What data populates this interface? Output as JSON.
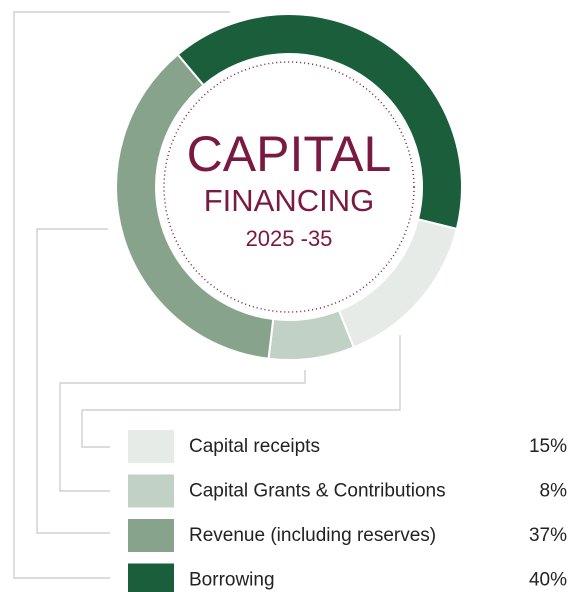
{
  "chart_data": {
    "type": "pie",
    "title_lines": [
      "CAPITAL",
      "FINANCING",
      "2025 -35"
    ],
    "categories": [
      "Capital receipts",
      "Capital Grants & Contributions",
      "Revenue (including reserves)",
      "Borrowing"
    ],
    "values": [
      15,
      8,
      37,
      40
    ],
    "value_labels": [
      "15%",
      "8%",
      "37%",
      "40%"
    ],
    "colors": [
      "#e6ebe7",
      "#c2d1c5",
      "#88a38b",
      "#1b5e3c"
    ],
    "title_color": "#7a1a43"
  }
}
